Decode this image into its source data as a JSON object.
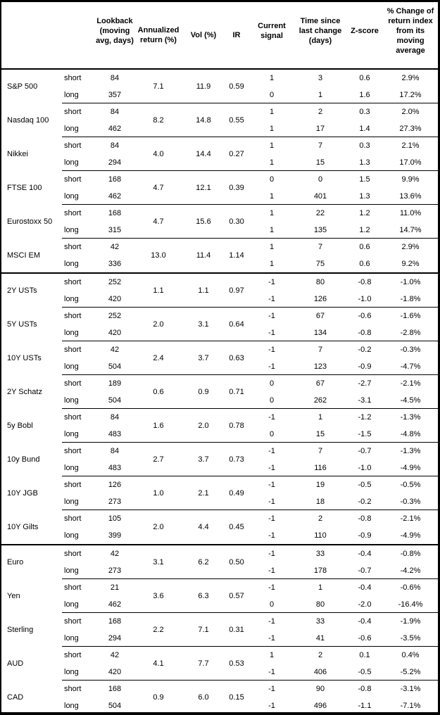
{
  "table": {
    "column_headers": [
      "Lookback\n(moving\navg, days)",
      "Annualized\nreturn (%)",
      "Vol (%)",
      "IR",
      "Current\nsignal",
      "Time since\nlast change\n(days)",
      "Z-score",
      "% Change of\nreturn index\nfrom its\nmoving\naverage"
    ],
    "row_label_short": "short",
    "row_label_long": "long",
    "text_color": "#000000",
    "border_color": "#000000",
    "background_color": "#ffffff",
    "sections": [
      {
        "assets": [
          {
            "name": "S&P 500",
            "annualized_return": "7.1",
            "vol": "11.9",
            "ir": "0.59",
            "rows": [
              {
                "horizon": "short",
                "lookback": "84",
                "signal": "1",
                "days_since_change": "3",
                "z_score": "0.6",
                "pct_change": "2.9%"
              },
              {
                "horizon": "long",
                "lookback": "357",
                "signal": "0",
                "days_since_change": "1",
                "z_score": "1.6",
                "pct_change": "17.2%"
              }
            ]
          },
          {
            "name": "Nasdaq 100",
            "annualized_return": "8.2",
            "vol": "14.8",
            "ir": "0.55",
            "rows": [
              {
                "horizon": "short",
                "lookback": "84",
                "signal": "1",
                "days_since_change": "2",
                "z_score": "0.3",
                "pct_change": "2.0%"
              },
              {
                "horizon": "long",
                "lookback": "462",
                "signal": "1",
                "days_since_change": "17",
                "z_score": "1.4",
                "pct_change": "27.3%"
              }
            ]
          },
          {
            "name": "Nikkei",
            "annualized_return": "4.0",
            "vol": "14.4",
            "ir": "0.27",
            "rows": [
              {
                "horizon": "short",
                "lookback": "84",
                "signal": "1",
                "days_since_change": "7",
                "z_score": "0.3",
                "pct_change": "2.1%"
              },
              {
                "horizon": "long",
                "lookback": "294",
                "signal": "1",
                "days_since_change": "15",
                "z_score": "1.3",
                "pct_change": "17.0%"
              }
            ]
          },
          {
            "name": "FTSE 100",
            "annualized_return": "4.7",
            "vol": "12.1",
            "ir": "0.39",
            "rows": [
              {
                "horizon": "short",
                "lookback": "168",
                "signal": "0",
                "days_since_change": "0",
                "z_score": "1.5",
                "pct_change": "9.9%"
              },
              {
                "horizon": "long",
                "lookback": "462",
                "signal": "1",
                "days_since_change": "401",
                "z_score": "1.3",
                "pct_change": "13.6%"
              }
            ]
          },
          {
            "name": "Eurostoxx 50",
            "annualized_return": "4.7",
            "vol": "15.6",
            "ir": "0.30",
            "rows": [
              {
                "horizon": "short",
                "lookback": "168",
                "signal": "1",
                "days_since_change": "22",
                "z_score": "1.2",
                "pct_change": "11.0%"
              },
              {
                "horizon": "long",
                "lookback": "315",
                "signal": "1",
                "days_since_change": "135",
                "z_score": "1.2",
                "pct_change": "14.7%"
              }
            ]
          },
          {
            "name": "MSCI EM",
            "annualized_return": "13.0",
            "vol": "11.4",
            "ir": "1.14",
            "rows": [
              {
                "horizon": "short",
                "lookback": "42",
                "signal": "1",
                "days_since_change": "7",
                "z_score": "0.6",
                "pct_change": "2.9%"
              },
              {
                "horizon": "long",
                "lookback": "336",
                "signal": "1",
                "days_since_change": "75",
                "z_score": "0.6",
                "pct_change": "9.2%"
              }
            ]
          }
        ]
      },
      {
        "assets": [
          {
            "name": "2Y USTs",
            "annualized_return": "1.1",
            "vol": "1.1",
            "ir": "0.97",
            "rows": [
              {
                "horizon": "short",
                "lookback": "252",
                "signal": "-1",
                "days_since_change": "80",
                "z_score": "-0.8",
                "pct_change": "-1.0%"
              },
              {
                "horizon": "long",
                "lookback": "420",
                "signal": "-1",
                "days_since_change": "126",
                "z_score": "-1.0",
                "pct_change": "-1.8%"
              }
            ]
          },
          {
            "name": "5Y USTs",
            "annualized_return": "2.0",
            "vol": "3.1",
            "ir": "0.64",
            "rows": [
              {
                "horizon": "short",
                "lookback": "252",
                "signal": "-1",
                "days_since_change": "67",
                "z_score": "-0.6",
                "pct_change": "-1.6%"
              },
              {
                "horizon": "long",
                "lookback": "420",
                "signal": "-1",
                "days_since_change": "134",
                "z_score": "-0.8",
                "pct_change": "-2.8%"
              }
            ]
          },
          {
            "name": "10Y USTs",
            "annualized_return": "2.4",
            "vol": "3.7",
            "ir": "0.63",
            "rows": [
              {
                "horizon": "short",
                "lookback": "42",
                "signal": "-1",
                "days_since_change": "7",
                "z_score": "-0.2",
                "pct_change": "-0.3%"
              },
              {
                "horizon": "long",
                "lookback": "504",
                "signal": "-1",
                "days_since_change": "123",
                "z_score": "-0.9",
                "pct_change": "-4.7%"
              }
            ]
          },
          {
            "name": "2Y Schatz",
            "annualized_return": "0.6",
            "vol": "0.9",
            "ir": "0.71",
            "rows": [
              {
                "horizon": "short",
                "lookback": "189",
                "signal": "0",
                "days_since_change": "67",
                "z_score": "-2.7",
                "pct_change": "-2.1%"
              },
              {
                "horizon": "long",
                "lookback": "504",
                "signal": "0",
                "days_since_change": "262",
                "z_score": "-3.1",
                "pct_change": "-4.5%"
              }
            ]
          },
          {
            "name": "5y Bobl",
            "annualized_return": "1.6",
            "vol": "2.0",
            "ir": "0.78",
            "rows": [
              {
                "horizon": "short",
                "lookback": "84",
                "signal": "-1",
                "days_since_change": "1",
                "z_score": "-1.2",
                "pct_change": "-1.3%"
              },
              {
                "horizon": "long",
                "lookback": "483",
                "signal": "0",
                "days_since_change": "15",
                "z_score": "-1.5",
                "pct_change": "-4.8%"
              }
            ]
          },
          {
            "name": "10y Bund",
            "annualized_return": "2.7",
            "vol": "3.7",
            "ir": "0.73",
            "rows": [
              {
                "horizon": "short",
                "lookback": "84",
                "signal": "-1",
                "days_since_change": "7",
                "z_score": "-0.7",
                "pct_change": "-1.3%"
              },
              {
                "horizon": "long",
                "lookback": "483",
                "signal": "-1",
                "days_since_change": "116",
                "z_score": "-1.0",
                "pct_change": "-4.9%"
              }
            ]
          },
          {
            "name": "10Y JGB",
            "annualized_return": "1.0",
            "vol": "2.1",
            "ir": "0.49",
            "rows": [
              {
                "horizon": "short",
                "lookback": "126",
                "signal": "-1",
                "days_since_change": "19",
                "z_score": "-0.5",
                "pct_change": "-0.5%"
              },
              {
                "horizon": "long",
                "lookback": "273",
                "signal": "-1",
                "days_since_change": "18",
                "z_score": "-0.2",
                "pct_change": "-0.3%"
              }
            ]
          },
          {
            "name": "10Y Gilts",
            "annualized_return": "2.0",
            "vol": "4.4",
            "ir": "0.45",
            "rows": [
              {
                "horizon": "short",
                "lookback": "105",
                "signal": "-1",
                "days_since_change": "2",
                "z_score": "-0.8",
                "pct_change": "-2.1%"
              },
              {
                "horizon": "long",
                "lookback": "399",
                "signal": "-1",
                "days_since_change": "110",
                "z_score": "-0.9",
                "pct_change": "-4.9%"
              }
            ]
          }
        ]
      },
      {
        "assets": [
          {
            "name": "Euro",
            "annualized_return": "3.1",
            "vol": "6.2",
            "ir": "0.50",
            "rows": [
              {
                "horizon": "short",
                "lookback": "42",
                "signal": "-1",
                "days_since_change": "33",
                "z_score": "-0.4",
                "pct_change": "-0.8%"
              },
              {
                "horizon": "long",
                "lookback": "273",
                "signal": "-1",
                "days_since_change": "178",
                "z_score": "-0.7",
                "pct_change": "-4.2%"
              }
            ]
          },
          {
            "name": "Yen",
            "annualized_return": "3.6",
            "vol": "6.3",
            "ir": "0.57",
            "rows": [
              {
                "horizon": "short",
                "lookback": "21",
                "signal": "-1",
                "days_since_change": "1",
                "z_score": "-0.4",
                "pct_change": "-0.6%"
              },
              {
                "horizon": "long",
                "lookback": "462",
                "signal": "0",
                "days_since_change": "80",
                "z_score": "-2.0",
                "pct_change": "-16.4%"
              }
            ]
          },
          {
            "name": "Sterling",
            "annualized_return": "2.2",
            "vol": "7.1",
            "ir": "0.31",
            "rows": [
              {
                "horizon": "short",
                "lookback": "168",
                "signal": "-1",
                "days_since_change": "33",
                "z_score": "-0.4",
                "pct_change": "-1.9%"
              },
              {
                "horizon": "long",
                "lookback": "294",
                "signal": "-1",
                "days_since_change": "41",
                "z_score": "-0.6",
                "pct_change": "-3.5%"
              }
            ]
          },
          {
            "name": "AUD",
            "annualized_return": "4.1",
            "vol": "7.7",
            "ir": "0.53",
            "rows": [
              {
                "horizon": "short",
                "lookback": "42",
                "signal": "1",
                "days_since_change": "2",
                "z_score": "0.1",
                "pct_change": "0.4%"
              },
              {
                "horizon": "long",
                "lookback": "420",
                "signal": "-1",
                "days_since_change": "406",
                "z_score": "-0.5",
                "pct_change": "-5.2%"
              }
            ]
          },
          {
            "name": "CAD",
            "annualized_return": "0.9",
            "vol": "6.0",
            "ir": "0.15",
            "rows": [
              {
                "horizon": "short",
                "lookback": "168",
                "signal": "-1",
                "days_since_change": "90",
                "z_score": "-0.8",
                "pct_change": "-3.1%"
              },
              {
                "horizon": "long",
                "lookback": "504",
                "signal": "-1",
                "days_since_change": "496",
                "z_score": "-1.1",
                "pct_change": "-7.1%"
              }
            ]
          }
        ]
      }
    ]
  }
}
